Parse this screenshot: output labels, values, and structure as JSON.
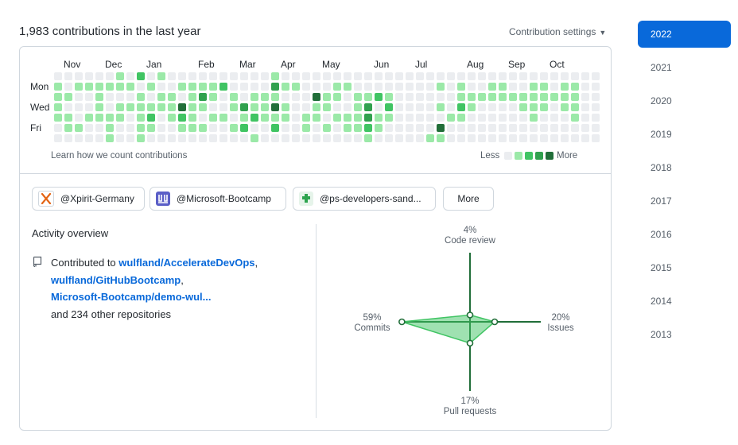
{
  "header": {
    "title": "1,983 contributions in the last year",
    "settings_label": "Contribution settings"
  },
  "calendar": {
    "months": [
      "Nov",
      "Dec",
      "Jan",
      "Feb",
      "Mar",
      "Apr",
      "May",
      "Jun",
      "Jul",
      "Aug",
      "Sep",
      "Oct"
    ],
    "day_labels": [
      "Mon",
      "Wed",
      "Fri"
    ],
    "learn_link": "Learn how we count contributions",
    "legend_less": "Less",
    "legend_more": "More",
    "colors": [
      "#ebedf0",
      "#9be9a8",
      "#40c463",
      "#30a14e",
      "#216e39"
    ],
    "weeks": [
      [
        0,
        1,
        1,
        1,
        1,
        0,
        0
      ],
      [
        0,
        0,
        1,
        0,
        1,
        1,
        0
      ],
      [
        0,
        1,
        0,
        0,
        0,
        1,
        0
      ],
      [
        0,
        1,
        0,
        0,
        1,
        0,
        0
      ],
      [
        0,
        1,
        1,
        1,
        1,
        0,
        0
      ],
      [
        0,
        1,
        0,
        0,
        1,
        1,
        1
      ],
      [
        1,
        1,
        0,
        1,
        1,
        0,
        0
      ],
      [
        0,
        1,
        0,
        1,
        0,
        0,
        0
      ],
      [
        2,
        0,
        1,
        1,
        1,
        1,
        1
      ],
      [
        0,
        1,
        0,
        1,
        2,
        1,
        0
      ],
      [
        1,
        0,
        1,
        1,
        0,
        0,
        0
      ],
      [
        0,
        0,
        1,
        1,
        1,
        0,
        0
      ],
      [
        0,
        1,
        0,
        4,
        2,
        1,
        0
      ],
      [
        0,
        1,
        1,
        1,
        1,
        1,
        0
      ],
      [
        0,
        1,
        3,
        1,
        0,
        1,
        0
      ],
      [
        0,
        1,
        1,
        0,
        1,
        0,
        0
      ],
      [
        0,
        2,
        0,
        0,
        1,
        0,
        0
      ],
      [
        0,
        0,
        1,
        1,
        0,
        1,
        0
      ],
      [
        0,
        0,
        0,
        3,
        1,
        2,
        0
      ],
      [
        0,
        0,
        1,
        1,
        2,
        0,
        1
      ],
      [
        0,
        0,
        1,
        1,
        1,
        0,
        0
      ],
      [
        1,
        3,
        1,
        4,
        1,
        2,
        0
      ],
      [
        0,
        1,
        0,
        1,
        1,
        0,
        0
      ],
      [
        0,
        1,
        0,
        0,
        0,
        0,
        0
      ],
      [
        0,
        0,
        0,
        0,
        1,
        1,
        0
      ],
      [
        0,
        0,
        4,
        1,
        1,
        0,
        0
      ],
      [
        0,
        0,
        1,
        1,
        0,
        1,
        0
      ],
      [
        0,
        1,
        1,
        0,
        1,
        0,
        0
      ],
      [
        0,
        1,
        0,
        0,
        1,
        1,
        0
      ],
      [
        0,
        0,
        1,
        1,
        1,
        1,
        0
      ],
      [
        0,
        0,
        1,
        3,
        3,
        2,
        1
      ],
      [
        0,
        0,
        2,
        0,
        1,
        1,
        0
      ],
      [
        0,
        0,
        1,
        2,
        1,
        0,
        0
      ],
      [
        0,
        0,
        0,
        0,
        0,
        0,
        0
      ],
      [
        0,
        0,
        0,
        0,
        0,
        0,
        0
      ],
      [
        0,
        0,
        0,
        0,
        0,
        0,
        0
      ],
      [
        0,
        0,
        0,
        0,
        0,
        0,
        1
      ],
      [
        0,
        1,
        0,
        1,
        0,
        4,
        1
      ],
      [
        0,
        0,
        0,
        0,
        1,
        0,
        0
      ],
      [
        0,
        1,
        1,
        2,
        1,
        0,
        0
      ],
      [
        0,
        0,
        1,
        1,
        0,
        0,
        0
      ],
      [
        0,
        0,
        1,
        0,
        0,
        0,
        0
      ],
      [
        0,
        1,
        1,
        0,
        0,
        0,
        0
      ],
      [
        0,
        1,
        1,
        0,
        0,
        0,
        0
      ],
      [
        0,
        0,
        1,
        0,
        0,
        0,
        0
      ],
      [
        0,
        0,
        1,
        1,
        0,
        0,
        0
      ],
      [
        0,
        1,
        1,
        1,
        1,
        0,
        0
      ],
      [
        0,
        1,
        1,
        1,
        0,
        0,
        0
      ],
      [
        0,
        0,
        1,
        0,
        0,
        0,
        0
      ],
      [
        0,
        1,
        1,
        1,
        0,
        0,
        0
      ],
      [
        0,
        1,
        1,
        1,
        1,
        0,
        0
      ],
      [
        0,
        0,
        0,
        0,
        0,
        0,
        0
      ],
      [
        0,
        0,
        0,
        0,
        0,
        0,
        0
      ]
    ]
  },
  "orgs": [
    {
      "name": "@Xpirit-Germany",
      "icon": "xpirit-logo-icon",
      "color": "#e36414"
    },
    {
      "name": "@Microsoft-Bootcamp",
      "icon": "bootcamp-logo-icon",
      "color": "#5b5fc7"
    },
    {
      "name": "@ps-developers-sand...",
      "icon": "puzzle-logo-icon",
      "color": "#2da44e"
    }
  ],
  "more_label": "More",
  "activity": {
    "title": "Activity overview",
    "prefix": "Contributed to ",
    "repos": [
      "wulfland/AccelerateDevOps",
      "wulfland/GitHubBootcamp",
      "Microsoft-Bootcamp/demo-wul..."
    ],
    "sep": ",",
    "suffix": "and 234 other repositories"
  },
  "radar": {
    "code_review": {
      "pct": "4%",
      "label": "Code review",
      "value": 4
    },
    "issues": {
      "pct": "20%",
      "label": "Issues",
      "value": 20
    },
    "pull_requests": {
      "pct": "17%",
      "label": "Pull requests",
      "value": 17
    },
    "commits": {
      "pct": "59%",
      "label": "Commits",
      "value": 59
    },
    "axis_color": "#216e39",
    "fill_color": "#40c463"
  },
  "years": [
    "2022",
    "2021",
    "2020",
    "2019",
    "2018",
    "2017",
    "2016",
    "2015",
    "2014",
    "2013"
  ],
  "active_year": "2022"
}
